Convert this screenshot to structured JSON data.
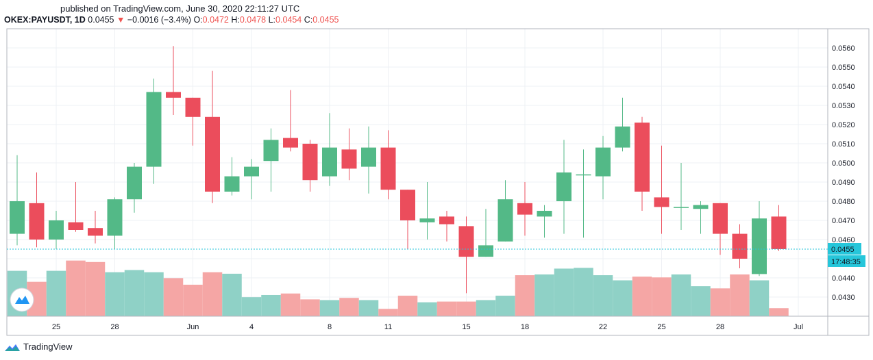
{
  "header": {
    "published": "published on TradingView.com, June 30, 2020 22:11:27 UTC",
    "symbol": "OKEX:PAYUSDT, 1D",
    "last": "0.0455",
    "change_arrow": "▼",
    "change": "−0.0016 (−3.4%)",
    "o_label": "O:",
    "o": "0.0472",
    "h_label": "H:",
    "h": "0.0478",
    "l_label": "L:",
    "l": "0.0454",
    "c_label": "C:",
    "c": "0.0455"
  },
  "footer": {
    "brand": "TradingView"
  },
  "colors": {
    "up": "#53b987",
    "down": "#eb4d5c",
    "vol_up": "#8fd1c6",
    "vol_down": "#f5a6a5",
    "price_line": "#26c6da"
  },
  "chart_data": {
    "type": "candlestick",
    "title": "OKEX:PAYUSDT, 1D",
    "y_range": [
      0.042,
      0.057
    ],
    "y_ticks": [
      "0.0430",
      "0.0440",
      "0.0450",
      "0.0460",
      "0.0470",
      "0.0480",
      "0.0490",
      "0.0500",
      "0.0510",
      "0.0520",
      "0.0530",
      "0.0540",
      "0.0550",
      "0.0560"
    ],
    "x_ticks": [
      {
        "label": "25",
        "index": 2
      },
      {
        "label": "28",
        "index": 5
      },
      {
        "label": "Jun",
        "index": 9
      },
      {
        "label": "4",
        "index": 12
      },
      {
        "label": "8",
        "index": 16
      },
      {
        "label": "11",
        "index": 19
      },
      {
        "label": "15",
        "index": 23
      },
      {
        "label": "18",
        "index": 26
      },
      {
        "label": "22",
        "index": 30
      },
      {
        "label": "25",
        "index": 33
      },
      {
        "label": "28",
        "index": 36
      },
      {
        "label": "Jul",
        "index": 40
      }
    ],
    "last_price_label": "0.0455",
    "countdown_label": "17:48:35",
    "last_price": 0.0455,
    "candles": [
      {
        "o": 0.0463,
        "h": 0.0504,
        "l": 0.0457,
        "c": 0.048,
        "v": 0.62
      },
      {
        "o": 0.0479,
        "h": 0.0495,
        "l": 0.0456,
        "c": 0.046,
        "v": 0.47
      },
      {
        "o": 0.046,
        "h": 0.0475,
        "l": 0.0455,
        "c": 0.047,
        "v": 0.62
      },
      {
        "o": 0.0469,
        "h": 0.049,
        "l": 0.0464,
        "c": 0.0465,
        "v": 0.76
      },
      {
        "o": 0.0466,
        "h": 0.0475,
        "l": 0.0458,
        "c": 0.0462,
        "v": 0.74
      },
      {
        "o": 0.0462,
        "h": 0.0482,
        "l": 0.0455,
        "c": 0.0481,
        "v": 0.6
      },
      {
        "o": 0.0481,
        "h": 0.05,
        "l": 0.0474,
        "c": 0.0498,
        "v": 0.63
      },
      {
        "o": 0.0498,
        "h": 0.0544,
        "l": 0.0489,
        "c": 0.0537,
        "v": 0.6
      },
      {
        "o": 0.0537,
        "h": 0.0561,
        "l": 0.0525,
        "c": 0.0534,
        "v": 0.52
      },
      {
        "o": 0.0534,
        "h": 0.0534,
        "l": 0.0509,
        "c": 0.0524,
        "v": 0.43
      },
      {
        "o": 0.0524,
        "h": 0.0548,
        "l": 0.0479,
        "c": 0.0485,
        "v": 0.6
      },
      {
        "o": 0.0485,
        "h": 0.0503,
        "l": 0.0483,
        "c": 0.0493,
        "v": 0.58
      },
      {
        "o": 0.0493,
        "h": 0.0502,
        "l": 0.0481,
        "c": 0.0498,
        "v": 0.26
      },
      {
        "o": 0.0501,
        "h": 0.0518,
        "l": 0.0485,
        "c": 0.0512,
        "v": 0.29
      },
      {
        "o": 0.0513,
        "h": 0.0538,
        "l": 0.0506,
        "c": 0.0508,
        "v": 0.31
      },
      {
        "o": 0.051,
        "h": 0.0512,
        "l": 0.0485,
        "c": 0.0491,
        "v": 0.23
      },
      {
        "o": 0.0493,
        "h": 0.0526,
        "l": 0.0488,
        "c": 0.0508,
        "v": 0.22
      },
      {
        "o": 0.0507,
        "h": 0.0518,
        "l": 0.0491,
        "c": 0.0497,
        "v": 0.25
      },
      {
        "o": 0.0498,
        "h": 0.0519,
        "l": 0.0484,
        "c": 0.0508,
        "v": 0.22
      },
      {
        "o": 0.0508,
        "h": 0.0517,
        "l": 0.0481,
        "c": 0.0486,
        "v": 0.1
      },
      {
        "o": 0.0486,
        "h": 0.0486,
        "l": 0.0455,
        "c": 0.047,
        "v": 0.28
      },
      {
        "o": 0.0469,
        "h": 0.049,
        "l": 0.046,
        "c": 0.0471,
        "v": 0.19
      },
      {
        "o": 0.0472,
        "h": 0.0475,
        "l": 0.0459,
        "c": 0.0468,
        "v": 0.2
      },
      {
        "o": 0.0467,
        "h": 0.0472,
        "l": 0.0432,
        "c": 0.0451,
        "v": 0.2
      },
      {
        "o": 0.0451,
        "h": 0.0476,
        "l": 0.0451,
        "c": 0.0457,
        "v": 0.22
      },
      {
        "o": 0.0459,
        "h": 0.0491,
        "l": 0.0459,
        "c": 0.0481,
        "v": 0.28
      },
      {
        "o": 0.0479,
        "h": 0.049,
        "l": 0.0462,
        "c": 0.0473,
        "v": 0.56
      },
      {
        "o": 0.0472,
        "h": 0.0478,
        "l": 0.0461,
        "c": 0.0475,
        "v": 0.57
      },
      {
        "o": 0.048,
        "h": 0.0512,
        "l": 0.0463,
        "c": 0.0495,
        "v": 0.65
      },
      {
        "o": 0.0494,
        "h": 0.0507,
        "l": 0.0461,
        "c": 0.0494,
        "v": 0.66
      },
      {
        "o": 0.0493,
        "h": 0.0514,
        "l": 0.0481,
        "c": 0.0508,
        "v": 0.56
      },
      {
        "o": 0.0508,
        "h": 0.0534,
        "l": 0.0506,
        "c": 0.0519,
        "v": 0.49
      },
      {
        "o": 0.0521,
        "h": 0.0524,
        "l": 0.0475,
        "c": 0.0485,
        "v": 0.54
      },
      {
        "o": 0.0482,
        "h": 0.0509,
        "l": 0.0463,
        "c": 0.0477,
        "v": 0.53
      },
      {
        "o": 0.0477,
        "h": 0.05,
        "l": 0.0465,
        "c": 0.0477,
        "v": 0.57
      },
      {
        "o": 0.0476,
        "h": 0.048,
        "l": 0.0463,
        "c": 0.0478,
        "v": 0.41
      },
      {
        "o": 0.0479,
        "h": 0.0479,
        "l": 0.0452,
        "c": 0.0463,
        "v": 0.38
      },
      {
        "o": 0.0463,
        "h": 0.0468,
        "l": 0.0445,
        "c": 0.045,
        "v": 0.57
      },
      {
        "o": 0.0442,
        "h": 0.048,
        "l": 0.0441,
        "c": 0.0471,
        "v": 0.49
      },
      {
        "o": 0.0472,
        "h": 0.0478,
        "l": 0.0454,
        "c": 0.0455,
        "v": 0.11
      }
    ]
  }
}
